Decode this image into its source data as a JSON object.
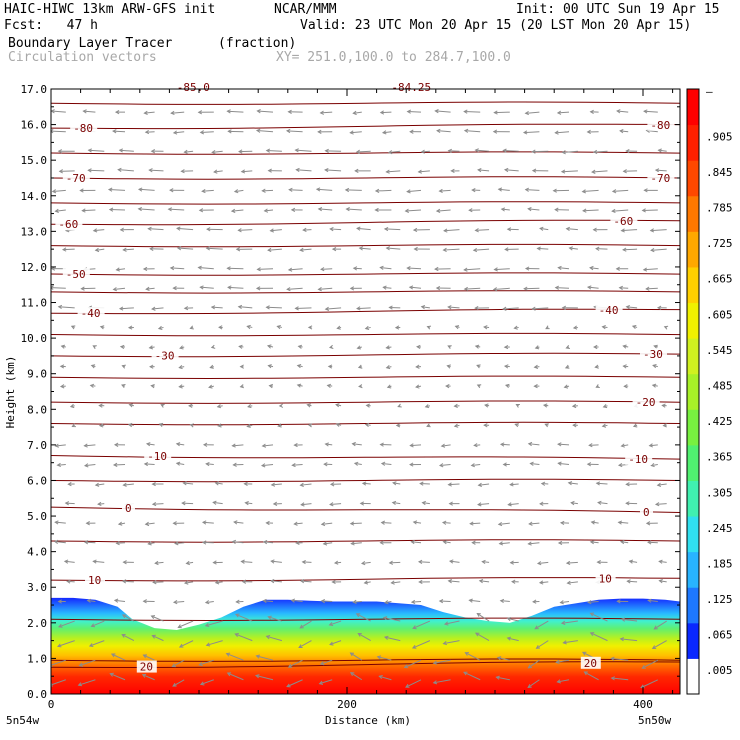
{
  "header": {
    "model": "HAIC-HIWC 13km ARW-GFS init",
    "org": "NCAR/MMM",
    "init": "Init: 00 UTC Sun 19 Apr 15",
    "fcst": "Fcst:   47 h",
    "valid": "Valid: 23 UTC Mon 20 Apr 15 (20 LST Mon 20 Apr 15)",
    "field1_name": "Boundary Layer Tracer",
    "field1_units": "(fraction)",
    "field2_name": "Circulation vectors",
    "xsec": "XY= 251.0,100.0 to 284.7,100.0"
  },
  "chart_data": {
    "type": "heatmap",
    "ylabel": "Height (km)",
    "xlabel": "Distance (km)",
    "ylim": [
      0,
      17
    ],
    "xlim": [
      0,
      425
    ],
    "y_ticks": [
      "0.0",
      "1.0",
      "2.0",
      "3.0",
      "4.0",
      "5.0",
      "6.0",
      "7.0",
      "8.0",
      "9.0",
      "10.0",
      "11.0",
      "12.0",
      "13.0",
      "14.0",
      "15.0",
      "16.0",
      "17.0"
    ],
    "x_ticks": [
      0,
      200,
      400
    ],
    "x_end_labels": [
      "5n54w",
      "5n50w"
    ],
    "colorbar": {
      "labels": [
        ".005",
        ".065",
        ".125",
        ".185",
        ".245",
        ".305",
        ".365",
        ".425",
        ".485",
        ".545",
        ".605",
        ".665",
        ".725",
        ".785",
        ".845",
        ".905"
      ],
      "top_label": "–",
      "colors": [
        "#ffffff",
        "#0a28ff",
        "#1e78ff",
        "#28b4ff",
        "#30e0f0",
        "#40f0b0",
        "#50f070",
        "#78f040",
        "#a8f028",
        "#d0f020",
        "#f0f000",
        "#ffd000",
        "#ffa800",
        "#ff7800",
        "#ff4800",
        "#ff2000",
        "#ff0000"
      ]
    },
    "tracer_top_km": {
      "distance_km": [
        0,
        15,
        30,
        45,
        55,
        70,
        85,
        100,
        115,
        130,
        145,
        160,
        175,
        190,
        205,
        220,
        235,
        250,
        265,
        280,
        295,
        310,
        325,
        340,
        355,
        370,
        385,
        400,
        415,
        425
      ],
      "height_km": [
        2.7,
        2.7,
        2.65,
        2.45,
        2.1,
        1.85,
        1.8,
        1.95,
        2.15,
        2.45,
        2.65,
        2.65,
        2.62,
        2.6,
        2.6,
        2.6,
        2.55,
        2.5,
        2.3,
        2.15,
        2.05,
        2.0,
        2.2,
        2.45,
        2.55,
        2.65,
        2.68,
        2.68,
        2.65,
        2.6
      ]
    },
    "temperature_contours": [
      {
        "value": 20,
        "left_km": 0.75,
        "right_km": 0.9,
        "labels": [
          {
            "text": "20",
            "x_km": 60
          },
          {
            "text": "20",
            "x_km": 360
          }
        ]
      },
      {
        "value": 10,
        "left_km": 3.2,
        "right_km": 3.25,
        "labels": [
          {
            "text": "10",
            "x_km": 25
          },
          {
            "text": "10",
            "x_km": 370
          }
        ]
      },
      {
        "value": 0,
        "left_km": 5.25,
        "right_km": 5.1,
        "labels": [
          {
            "text": "0",
            "x_km": 50
          },
          {
            "text": "0",
            "x_km": 400
          }
        ]
      },
      {
        "value": -10,
        "left_km": 6.7,
        "right_km": 6.6,
        "labels": [
          {
            "text": "-10",
            "x_km": 65
          },
          {
            "text": "-10",
            "x_km": 390
          }
        ]
      },
      {
        "value": -20,
        "left_km": 8.2,
        "right_km": 8.2,
        "labels": [
          {
            "text": "-20",
            "x_km": 395
          }
        ]
      },
      {
        "value": -30,
        "left_km": 9.5,
        "right_km": 9.55,
        "labels": [
          {
            "text": "-30",
            "x_km": 70
          },
          {
            "text": "-30",
            "x_km": 400
          }
        ]
      },
      {
        "value": -40,
        "left_km": 10.7,
        "right_km": 10.8,
        "labels": [
          {
            "text": "-40",
            "x_km": 20
          },
          {
            "text": "-40",
            "x_km": 370
          }
        ]
      },
      {
        "value": -50,
        "left_km": 11.8,
        "right_km": 11.8,
        "labels": [
          {
            "text": "-50",
            "x_km": 10
          }
        ]
      },
      {
        "value": -60,
        "left_km": 13.2,
        "right_km": 13.3,
        "labels": [
          {
            "text": "-60",
            "x_km": 5
          },
          {
            "text": "-60",
            "x_km": 380
          }
        ]
      },
      {
        "value": -70,
        "left_km": 14.5,
        "right_km": 14.5,
        "labels": [
          {
            "text": "-70",
            "x_km": 10
          },
          {
            "text": "-70",
            "x_km": 405
          }
        ]
      },
      {
        "value": -80,
        "left_km": 15.9,
        "right_km": 16.0,
        "labels": [
          {
            "text": "-80",
            "x_km": 15
          },
          {
            "text": "-80",
            "x_km": 405
          }
        ]
      }
    ],
    "extra_contour_levels_km": [
      0.95,
      2.1,
      4.3,
      6.0,
      7.6,
      8.9,
      10.1,
      11.3,
      12.6,
      13.8,
      15.2,
      16.6
    ],
    "top_labels": [
      {
        "text": "-85.0",
        "x_km": 85
      },
      {
        "text": "-84.25",
        "x_km": 230
      }
    ],
    "vectors_note": "westward circulation vectors, strong near surface"
  }
}
